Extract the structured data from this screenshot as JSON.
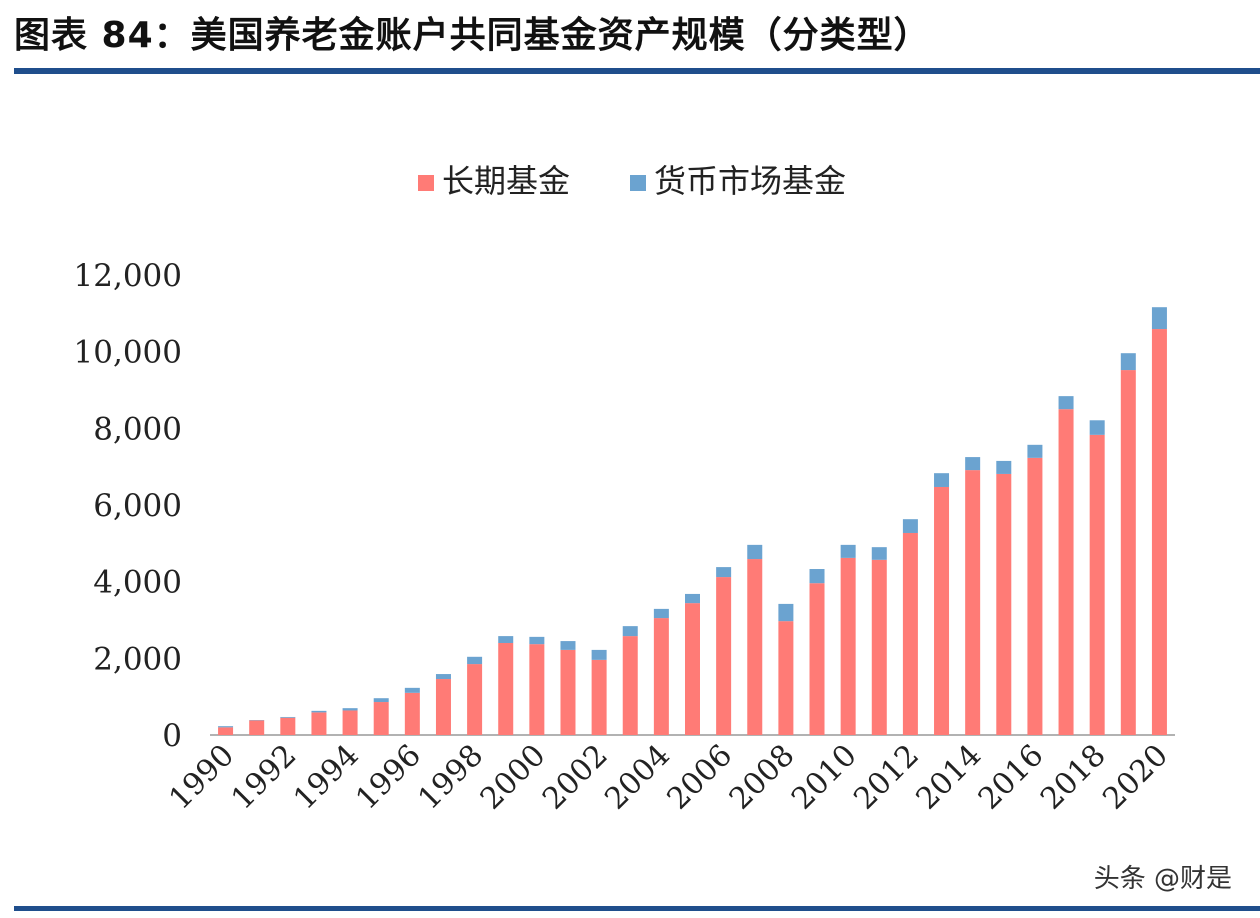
{
  "header": {
    "title": "图表 84：美国养老金账户共同基金资产规模（分类型）"
  },
  "watermark": "头条 @财是",
  "chart_data": {
    "type": "bar",
    "stacked": true,
    "title": "",
    "xlabel": "",
    "ylabel": "",
    "ylim": [
      0,
      12000
    ],
    "yticks": [
      "0",
      "2,000",
      "4,000",
      "6,000",
      "8,000",
      "10,000",
      "12,000"
    ],
    "grid": false,
    "legend_position": "top",
    "categories": [
      "1990",
      "1991",
      "1992",
      "1993",
      "1994",
      "1995",
      "1996",
      "1997",
      "1998",
      "1999",
      "2000",
      "2001",
      "2002",
      "2003",
      "2004",
      "2005",
      "2006",
      "2007",
      "2008",
      "2009",
      "2010",
      "2011",
      "2012",
      "2013",
      "2014",
      "2015",
      "2016",
      "2017",
      "2018",
      "2019",
      "2020"
    ],
    "xtick_labels": [
      "1990",
      "1992",
      "1994",
      "1996",
      "1998",
      "2000",
      "2002",
      "2004",
      "2006",
      "2008",
      "2010",
      "2012",
      "2014",
      "2016",
      "2018",
      "2020"
    ],
    "series": [
      {
        "name": "长期基金",
        "color": "#ff7b76",
        "values": [
          200,
          380,
          450,
          590,
          640,
          860,
          1100,
          1460,
          1850,
          2400,
          2370,
          2220,
          1960,
          2580,
          3050,
          3440,
          4120,
          4590,
          2970,
          3960,
          4620,
          4570,
          5270,
          6470,
          6910,
          6810,
          7230,
          8500,
          7830,
          9520,
          10590
        ]
      },
      {
        "name": "货币市场基金",
        "color": "#6ba3d0",
        "values": [
          30,
          10,
          20,
          40,
          60,
          100,
          130,
          130,
          190,
          180,
          190,
          230,
          260,
          260,
          240,
          240,
          260,
          370,
          450,
          370,
          340,
          330,
          360,
          360,
          340,
          340,
          340,
          340,
          380,
          440,
          570
        ]
      }
    ]
  }
}
